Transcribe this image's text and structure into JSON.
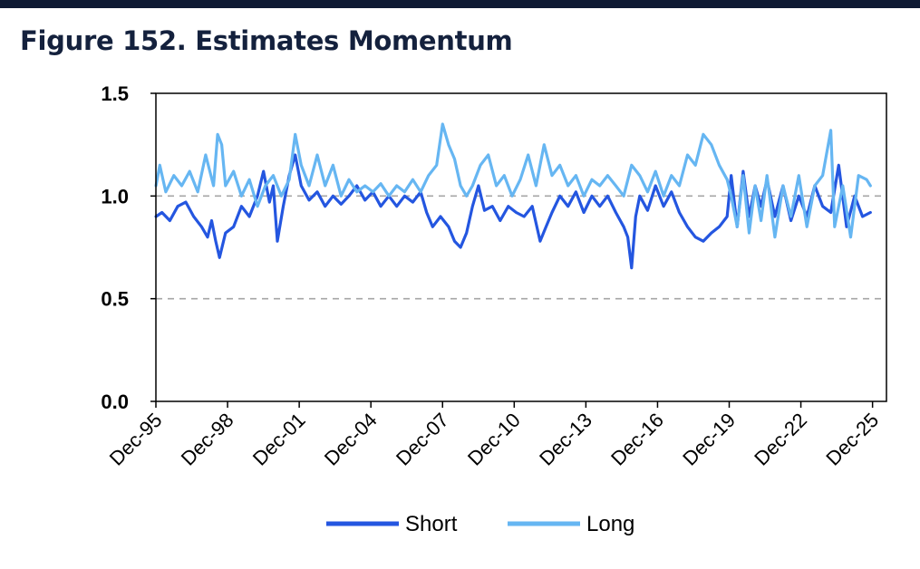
{
  "title": "Figure 152. Estimates Momentum",
  "chart_data": {
    "type": "line",
    "title": "Figure 152. Estimates Momentum",
    "xlabel": "",
    "ylabel": "",
    "ylim": [
      0,
      1.5
    ],
    "yticks": [
      "0.0",
      "0.5",
      "1.0",
      "1.5"
    ],
    "xlim": [
      1995.917,
      2026.5
    ],
    "xtick_labels": [
      "Dec-95",
      "Dec-98",
      "Dec-01",
      "Dec-04",
      "Dec-07",
      "Dec-10",
      "Dec-13",
      "Dec-16",
      "Dec-19",
      "Dec-22",
      "Dec-25"
    ],
    "grid": "horizontal dashed at 0.5 and 1.0",
    "legend": "bottom",
    "series": [
      {
        "name": "Short",
        "color": "#2456e0",
        "points": [
          [
            1995.92,
            0.9
          ],
          [
            1996.17,
            0.92
          ],
          [
            1996.5,
            0.88
          ],
          [
            1996.83,
            0.95
          ],
          [
            1997.17,
            0.97
          ],
          [
            1997.5,
            0.9
          ],
          [
            1997.83,
            0.85
          ],
          [
            1998.08,
            0.8
          ],
          [
            1998.25,
            0.88
          ],
          [
            1998.42,
            0.78
          ],
          [
            1998.58,
            0.7
          ],
          [
            1998.83,
            0.82
          ],
          [
            1999.17,
            0.85
          ],
          [
            1999.5,
            0.95
          ],
          [
            1999.83,
            0.9
          ],
          [
            2000.17,
            1.0
          ],
          [
            2000.42,
            1.12
          ],
          [
            2000.67,
            0.97
          ],
          [
            2000.83,
            1.05
          ],
          [
            2001.0,
            0.78
          ],
          [
            2001.25,
            0.95
          ],
          [
            2001.5,
            1.1
          ],
          [
            2001.75,
            1.2
          ],
          [
            2002.0,
            1.05
          ],
          [
            2002.33,
            0.98
          ],
          [
            2002.67,
            1.02
          ],
          [
            2003.0,
            0.95
          ],
          [
            2003.33,
            1.0
          ],
          [
            2003.67,
            0.96
          ],
          [
            2004.0,
            1.0
          ],
          [
            2004.33,
            1.05
          ],
          [
            2004.67,
            0.98
          ],
          [
            2005.0,
            1.02
          ],
          [
            2005.33,
            0.95
          ],
          [
            2005.67,
            1.0
          ],
          [
            2006.0,
            0.95
          ],
          [
            2006.33,
            1.0
          ],
          [
            2006.67,
            0.97
          ],
          [
            2007.0,
            1.02
          ],
          [
            2007.25,
            0.92
          ],
          [
            2007.5,
            0.85
          ],
          [
            2007.83,
            0.9
          ],
          [
            2008.17,
            0.85
          ],
          [
            2008.42,
            0.78
          ],
          [
            2008.67,
            0.75
          ],
          [
            2008.92,
            0.82
          ],
          [
            2009.17,
            0.95
          ],
          [
            2009.42,
            1.05
          ],
          [
            2009.67,
            0.93
          ],
          [
            2010.0,
            0.95
          ],
          [
            2010.33,
            0.88
          ],
          [
            2010.67,
            0.95
          ],
          [
            2011.0,
            0.92
          ],
          [
            2011.33,
            0.9
          ],
          [
            2011.67,
            0.95
          ],
          [
            2012.0,
            0.78
          ],
          [
            2012.25,
            0.85
          ],
          [
            2012.5,
            0.92
          ],
          [
            2012.83,
            1.0
          ],
          [
            2013.17,
            0.95
          ],
          [
            2013.5,
            1.02
          ],
          [
            2013.83,
            0.92
          ],
          [
            2014.17,
            1.0
          ],
          [
            2014.5,
            0.95
          ],
          [
            2014.83,
            1.0
          ],
          [
            2015.17,
            0.92
          ],
          [
            2015.5,
            0.85
          ],
          [
            2015.67,
            0.8
          ],
          [
            2015.83,
            0.65
          ],
          [
            2016.0,
            0.9
          ],
          [
            2016.17,
            1.0
          ],
          [
            2016.5,
            0.93
          ],
          [
            2016.83,
            1.05
          ],
          [
            2017.17,
            0.95
          ],
          [
            2017.5,
            1.02
          ],
          [
            2017.83,
            0.92
          ],
          [
            2018.17,
            0.85
          ],
          [
            2018.5,
            0.8
          ],
          [
            2018.83,
            0.78
          ],
          [
            2019.17,
            0.82
          ],
          [
            2019.5,
            0.85
          ],
          [
            2019.83,
            0.9
          ],
          [
            2020.0,
            1.1
          ],
          [
            2020.25,
            0.85
          ],
          [
            2020.5,
            1.12
          ],
          [
            2020.75,
            0.9
          ],
          [
            2021.0,
            1.05
          ],
          [
            2021.25,
            0.95
          ],
          [
            2021.5,
            1.08
          ],
          [
            2021.83,
            0.9
          ],
          [
            2022.17,
            1.05
          ],
          [
            2022.5,
            0.88
          ],
          [
            2022.83,
            1.0
          ],
          [
            2023.17,
            0.9
          ],
          [
            2023.5,
            1.05
          ],
          [
            2023.83,
            0.95
          ],
          [
            2024.17,
            0.92
          ],
          [
            2024.5,
            1.15
          ],
          [
            2024.83,
            0.85
          ],
          [
            2025.17,
            1.0
          ],
          [
            2025.5,
            0.9
          ],
          [
            2025.83,
            0.92
          ]
        ]
      },
      {
        "name": "Long",
        "color": "#66b6f2",
        "points": [
          [
            1995.92,
            1.05
          ],
          [
            1996.08,
            1.15
          ],
          [
            1996.33,
            1.02
          ],
          [
            1996.67,
            1.1
          ],
          [
            1997.0,
            1.05
          ],
          [
            1997.33,
            1.12
          ],
          [
            1997.67,
            1.02
          ],
          [
            1998.0,
            1.2
          ],
          [
            1998.33,
            1.05
          ],
          [
            1998.5,
            1.3
          ],
          [
            1998.67,
            1.25
          ],
          [
            1998.83,
            1.05
          ],
          [
            1999.17,
            1.12
          ],
          [
            1999.5,
            1.0
          ],
          [
            1999.83,
            1.08
          ],
          [
            2000.17,
            0.95
          ],
          [
            2000.5,
            1.05
          ],
          [
            2000.83,
            1.1
          ],
          [
            2001.17,
            1.0
          ],
          [
            2001.5,
            1.08
          ],
          [
            2001.75,
            1.3
          ],
          [
            2002.0,
            1.15
          ],
          [
            2002.33,
            1.05
          ],
          [
            2002.67,
            1.2
          ],
          [
            2003.0,
            1.05
          ],
          [
            2003.33,
            1.15
          ],
          [
            2003.67,
            1.0
          ],
          [
            2004.0,
            1.08
          ],
          [
            2004.33,
            1.02
          ],
          [
            2004.67,
            1.05
          ],
          [
            2005.0,
            1.02
          ],
          [
            2005.33,
            1.06
          ],
          [
            2005.67,
            1.0
          ],
          [
            2006.0,
            1.05
          ],
          [
            2006.33,
            1.02
          ],
          [
            2006.67,
            1.08
          ],
          [
            2007.0,
            1.02
          ],
          [
            2007.33,
            1.1
          ],
          [
            2007.67,
            1.15
          ],
          [
            2007.92,
            1.35
          ],
          [
            2008.17,
            1.25
          ],
          [
            2008.42,
            1.18
          ],
          [
            2008.67,
            1.05
          ],
          [
            2008.92,
            1.0
          ],
          [
            2009.17,
            1.05
          ],
          [
            2009.5,
            1.15
          ],
          [
            2009.83,
            1.2
          ],
          [
            2010.17,
            1.05
          ],
          [
            2010.5,
            1.1
          ],
          [
            2010.83,
            1.0
          ],
          [
            2011.17,
            1.08
          ],
          [
            2011.5,
            1.2
          ],
          [
            2011.83,
            1.05
          ],
          [
            2012.17,
            1.25
          ],
          [
            2012.5,
            1.1
          ],
          [
            2012.83,
            1.15
          ],
          [
            2013.17,
            1.05
          ],
          [
            2013.5,
            1.1
          ],
          [
            2013.83,
            1.0
          ],
          [
            2014.17,
            1.08
          ],
          [
            2014.5,
            1.05
          ],
          [
            2014.83,
            1.1
          ],
          [
            2015.17,
            1.05
          ],
          [
            2015.5,
            1.0
          ],
          [
            2015.83,
            1.15
          ],
          [
            2016.17,
            1.1
          ],
          [
            2016.5,
            1.02
          ],
          [
            2016.83,
            1.12
          ],
          [
            2017.17,
            1.0
          ],
          [
            2017.5,
            1.1
          ],
          [
            2017.83,
            1.05
          ],
          [
            2018.17,
            1.2
          ],
          [
            2018.5,
            1.15
          ],
          [
            2018.83,
            1.3
          ],
          [
            2019.17,
            1.25
          ],
          [
            2019.5,
            1.15
          ],
          [
            2019.83,
            1.08
          ],
          [
            2020.0,
            1.0
          ],
          [
            2020.25,
            0.85
          ],
          [
            2020.5,
            1.1
          ],
          [
            2020.75,
            0.82
          ],
          [
            2021.0,
            1.05
          ],
          [
            2021.25,
            0.88
          ],
          [
            2021.5,
            1.1
          ],
          [
            2021.83,
            0.8
          ],
          [
            2022.17,
            1.05
          ],
          [
            2022.5,
            0.9
          ],
          [
            2022.83,
            1.1
          ],
          [
            2023.17,
            0.85
          ],
          [
            2023.5,
            1.05
          ],
          [
            2023.83,
            1.1
          ],
          [
            2024.17,
            1.32
          ],
          [
            2024.33,
            0.85
          ],
          [
            2024.67,
            1.05
          ],
          [
            2025.0,
            0.8
          ],
          [
            2025.33,
            1.1
          ],
          [
            2025.67,
            1.08
          ],
          [
            2025.83,
            1.05
          ]
        ]
      }
    ]
  }
}
